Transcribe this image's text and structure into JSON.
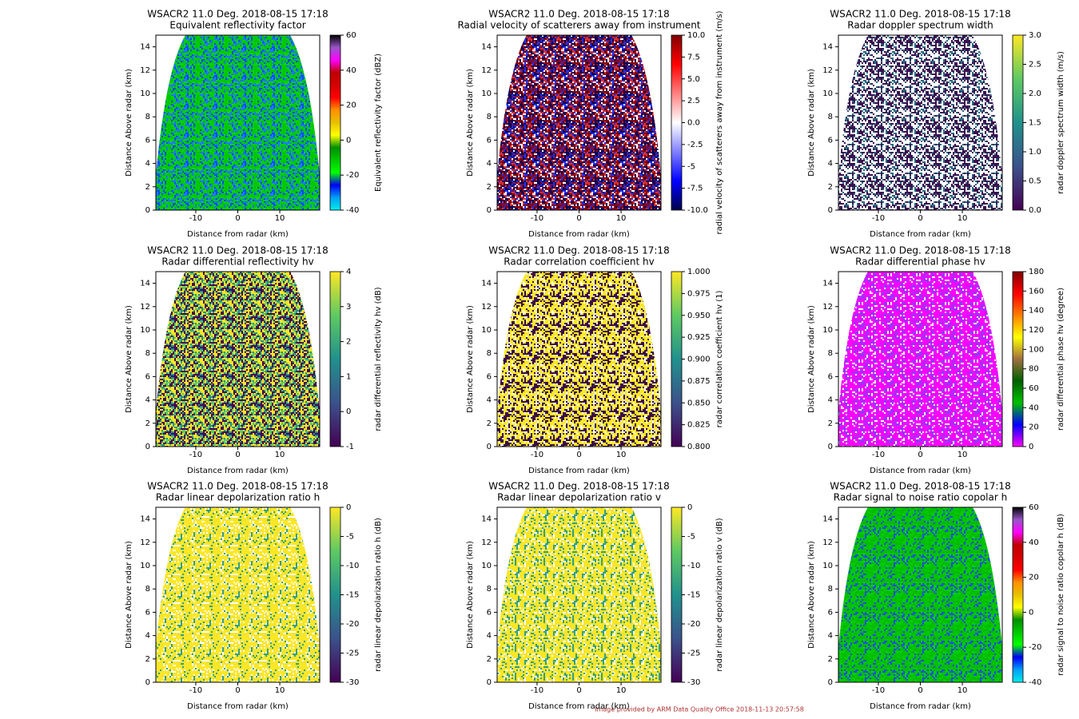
{
  "chart_data": [
    {
      "type": "radar_ppi",
      "title": "WSACR2 11.0 Deg. 2018-08-15 17:18",
      "subtitle": "Equivalent reflectivity factor",
      "xlabel": "Distance from radar (km)",
      "ylabel": "Distance Above radar (km)",
      "xlim": [
        -19.5,
        19.5
      ],
      "ylim": [
        0,
        15
      ],
      "xticks": [
        -10,
        0,
        10
      ],
      "yticks": [
        0,
        2,
        4,
        6,
        8,
        10,
        12,
        14
      ],
      "colorbar": {
        "label": "Equivalent reflectivity factor (dBZ)",
        "lim": [
          -40,
          60
        ],
        "ticks": [
          -40,
          -20,
          0,
          20,
          40,
          60
        ],
        "cmap": [
          "#00ecec",
          "#01a0f6",
          "#0000f6",
          "#00ff00",
          "#00c800",
          "#009000",
          "#ffff00",
          "#e7c000",
          "#ff9000",
          "#ff0000",
          "#d60000",
          "#c00000",
          "#ff00ff",
          "#9955c9",
          "#000000"
        ]
      },
      "texture": [
        "#00c800",
        "#00c800",
        "#00c800",
        "#10d010",
        "#1e78ff",
        "#0050f0"
      ]
    },
    {
      "type": "radar_ppi",
      "title": "WSACR2 11.0 Deg. 2018-08-15 17:18",
      "subtitle": "Radial velocity of scatterers away from instrument",
      "xlabel": "Distance from radar (km)",
      "ylabel": "Distance Above radar (km)",
      "xlim": [
        -19.5,
        19.5
      ],
      "ylim": [
        0,
        15
      ],
      "xticks": [
        -10,
        0,
        10
      ],
      "yticks": [
        0,
        2,
        4,
        6,
        8,
        10,
        12,
        14
      ],
      "colorbar": {
        "label": "radial velocity of scatterers away from instrument (m/s)",
        "lim": [
          -10,
          10
        ],
        "ticks": [
          {
            "value": -10,
            "label": "-10.0"
          },
          -7.5,
          -5,
          -2.5,
          {
            "value": 0,
            "label": "0.0"
          },
          2.5,
          {
            "value": 5,
            "label": "5.0"
          },
          7.5,
          {
            "value": 10,
            "label": "10.0"
          }
        ],
        "cmap": [
          "#00004c",
          "#0000ff",
          "#8080ff",
          "#ffffff",
          "#ff8080",
          "#ff0000",
          "#800000"
        ]
      },
      "texture": [
        "#8b0000",
        "#8b0000",
        "#00005a",
        "#00005a",
        "#ffffff",
        "#2030ff",
        "#e03030"
      ]
    },
    {
      "type": "radar_ppi",
      "title": "WSACR2 11.0 Deg. 2018-08-15 17:18",
      "subtitle": "Radar doppler spectrum width",
      "xlabel": "Distance from radar (km)",
      "ylabel": "Distance Above radar (km)",
      "xlim": [
        -19.5,
        19.5
      ],
      "ylim": [
        0,
        15
      ],
      "xticks": [
        -10,
        0,
        10
      ],
      "yticks": [
        0,
        2,
        4,
        6,
        8,
        10,
        12,
        14
      ],
      "colorbar": {
        "label": "radar doppler spectrum width (m/s)",
        "lim": [
          0,
          3
        ],
        "ticks": [
          {
            "value": 0,
            "label": "0.0"
          },
          0.5,
          {
            "value": 1,
            "label": "1.0"
          },
          1.5,
          {
            "value": 2,
            "label": "2.0"
          },
          2.5,
          {
            "value": 3,
            "label": "3.0"
          }
        ],
        "cmap": [
          "#440154",
          "#3b528b",
          "#21918c",
          "#5ec962",
          "#fde725"
        ]
      },
      "texture": [
        "#3a1050",
        "#3a1050",
        "#ffffff",
        "#ffffff",
        "#ffffff",
        "#2a6a80"
      ]
    },
    {
      "type": "radar_ppi",
      "title": "WSACR2 11.0 Deg. 2018-08-15 17:18",
      "subtitle": "Radar differential reflectivity hv",
      "xlabel": "Distance from radar (km)",
      "ylabel": "Distance Above radar (km)",
      "xlim": [
        -19.5,
        19.5
      ],
      "ylim": [
        0,
        15
      ],
      "xticks": [
        -10,
        0,
        10
      ],
      "yticks": [
        0,
        2,
        4,
        6,
        8,
        10,
        12,
        14
      ],
      "colorbar": {
        "label": "radar differential reflectivity hv (dB)",
        "lim": [
          -1,
          4
        ],
        "ticks": [
          -1,
          0,
          1,
          2,
          3,
          4
        ],
        "cmap": [
          "#440154",
          "#3b528b",
          "#21918c",
          "#5ec962",
          "#fde725"
        ]
      },
      "texture": [
        "#fde725",
        "#fde725",
        "#440154",
        "#440154",
        "#21918c",
        "#5ec962"
      ]
    },
    {
      "type": "radar_ppi",
      "title": "WSACR2 11.0 Deg. 2018-08-15 17:18",
      "subtitle": "Radar correlation coefficient hv",
      "xlabel": "Distance from radar (km)",
      "ylabel": "Distance Above radar (km)",
      "xlim": [
        -19.5,
        19.5
      ],
      "ylim": [
        0,
        15
      ],
      "xticks": [
        -10,
        0,
        10
      ],
      "yticks": [
        0,
        2,
        4,
        6,
        8,
        10,
        12,
        14
      ],
      "colorbar": {
        "label": "radar correlation coefficient hv (1)",
        "lim": [
          0.8,
          1
        ],
        "ticks": [
          {
            "value": 0.8,
            "label": "0.800"
          },
          0.825,
          {
            "value": 0.85,
            "label": "0.850"
          },
          0.875,
          {
            "value": 0.9,
            "label": "0.900"
          },
          0.925,
          {
            "value": 0.95,
            "label": "0.950"
          },
          0.975,
          {
            "value": 1,
            "label": "1.000"
          }
        ],
        "cmap": [
          "#440154",
          "#3b528b",
          "#21918c",
          "#5ec962",
          "#fde725"
        ]
      },
      "texture": [
        "#fde725",
        "#fde725",
        "#fde725",
        "#3a0a4a",
        "#3a0a4a",
        "#ffffff"
      ]
    },
    {
      "type": "radar_ppi",
      "title": "WSACR2 11.0 Deg. 2018-08-15 17:18",
      "subtitle": "Radar differential phase hv",
      "xlabel": "Distance from radar (km)",
      "ylabel": "Distance Above radar (km)",
      "xlim": [
        -19.5,
        19.5
      ],
      "ylim": [
        0,
        15
      ],
      "xticks": [
        -10,
        0,
        10
      ],
      "yticks": [
        0,
        2,
        4,
        6,
        8,
        10,
        12,
        14
      ],
      "colorbar": {
        "label": "radar differential phase hv (degree)",
        "lim": [
          0,
          180
        ],
        "ticks": [
          0,
          20,
          40,
          60,
          80,
          100,
          120,
          140,
          160,
          180
        ],
        "cmap": [
          "#ff00ff",
          "#0000ff",
          "#00c000",
          "#006000",
          "#a07040",
          "#ffff00",
          "#ff8000",
          "#ff0000",
          "#800000"
        ]
      },
      "texture": [
        "#ff00ff",
        "#ff00ff",
        "#ff00ff",
        "#ff00ff",
        "#ffffff",
        "#8040ff"
      ]
    },
    {
      "type": "radar_ppi",
      "title": "WSACR2 11.0 Deg. 2018-08-15 17:18",
      "subtitle": "Radar linear depolarization ratio h",
      "xlabel": "Distance from radar (km)",
      "ylabel": "Distance Above radar (km)",
      "xlim": [
        -19.5,
        19.5
      ],
      "ylim": [
        0,
        15
      ],
      "xticks": [
        -10,
        0,
        10
      ],
      "yticks": [
        0,
        2,
        4,
        6,
        8,
        10,
        12,
        14
      ],
      "colorbar": {
        "label": "radar linear depolarization ratio h (dB)",
        "lim": [
          -30,
          0
        ],
        "ticks": [
          -30,
          -25,
          -20,
          -15,
          -10,
          -5,
          0
        ],
        "cmap": [
          "#440154",
          "#3b528b",
          "#21918c",
          "#5ec962",
          "#fde725"
        ]
      },
      "texture": [
        "#fde725",
        "#fde725",
        "#fde725",
        "#fde725",
        "#fde725",
        "#f5e040",
        "#ffffff",
        "#30a080"
      ]
    },
    {
      "type": "radar_ppi",
      "title": "WSACR2 11.0 Deg. 2018-08-15 17:18",
      "subtitle": "Radar linear depolarization ratio v",
      "xlabel": "Distance from radar (km)",
      "ylabel": "Distance Above radar (km)",
      "xlim": [
        -19.5,
        19.5
      ],
      "ylim": [
        0,
        15
      ],
      "xticks": [
        -10,
        0,
        10
      ],
      "yticks": [
        0,
        2,
        4,
        6,
        8,
        10,
        12,
        14
      ],
      "colorbar": {
        "label": "radar linear depolarization ratio v (dB)",
        "lim": [
          -30,
          0
        ],
        "ticks": [
          -30,
          -25,
          -20,
          -15,
          -10,
          -5,
          0
        ],
        "cmap": [
          "#440154",
          "#3b528b",
          "#21918c",
          "#5ec962",
          "#fde725"
        ]
      },
      "texture": [
        "#fde725",
        "#fde725",
        "#fde725",
        "#fde725",
        "#fde725",
        "#f5e040",
        "#ffffff",
        "#30a080"
      ]
    },
    {
      "type": "radar_ppi",
      "title": "WSACR2 11.0 Deg. 2018-08-15 17:18",
      "subtitle": "Radar signal to noise ratio copolar h",
      "xlabel": "Distance from radar (km)",
      "ylabel": "Distance Above radar (km)",
      "xlim": [
        -19.5,
        19.5
      ],
      "ylim": [
        0,
        15
      ],
      "xticks": [
        -10,
        0,
        10
      ],
      "yticks": [
        0,
        2,
        4,
        6,
        8,
        10,
        12,
        14
      ],
      "colorbar": {
        "label": "radar signal to noise ratio copolar h (dB)",
        "lim": [
          -40,
          60
        ],
        "ticks": [
          -40,
          -20,
          0,
          20,
          40,
          60
        ],
        "cmap": [
          "#00ecec",
          "#01a0f6",
          "#0000f6",
          "#00ff00",
          "#00c800",
          "#009000",
          "#ffff00",
          "#e7c000",
          "#ff9000",
          "#ff0000",
          "#d60000",
          "#c00000",
          "#ff00ff",
          "#9955c9",
          "#000000"
        ]
      },
      "texture": [
        "#00c000",
        "#00c000",
        "#00c000",
        "#00d000",
        "#10b010",
        "#2050e0"
      ]
    }
  ],
  "footer": "Image provided by ARM Data Quality Office 2018-11-13 20:57:58"
}
